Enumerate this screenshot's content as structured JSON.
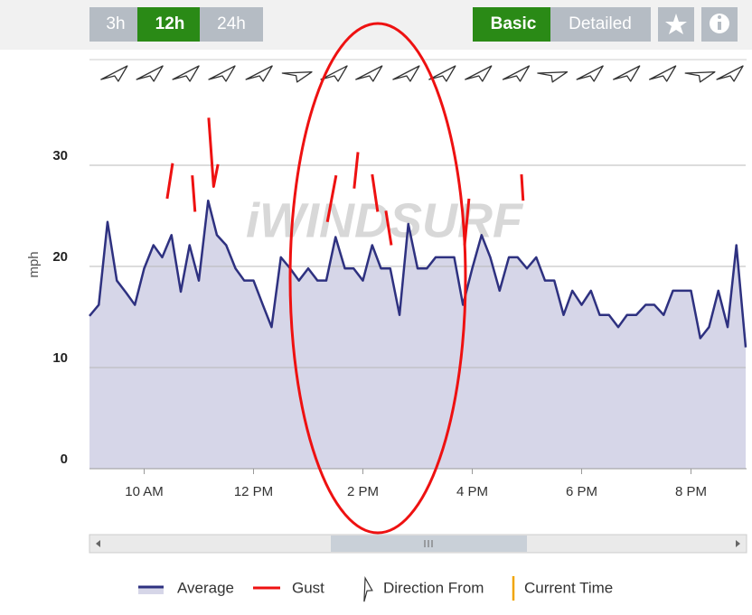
{
  "ui": {
    "ranges": [
      "3h",
      "12h",
      "24h"
    ],
    "views": [
      "Basic",
      "Detailed"
    ],
    "watermark": "iWINDSURF"
  },
  "chart_data": {
    "type": "line",
    "y_label": "mph",
    "xlim": [
      9,
      21
    ],
    "xticks": [
      {
        "value": 10,
        "label": "10 AM"
      },
      {
        "value": 12,
        "label": "12 PM"
      },
      {
        "value": 14,
        "label": "2 PM"
      },
      {
        "value": 16,
        "label": "4 PM"
      },
      {
        "value": 18,
        "label": "6 PM"
      },
      {
        "value": 20,
        "label": "8 PM"
      }
    ],
    "ylim": [
      0,
      35
    ],
    "yticks": [
      0,
      10,
      20,
      30
    ],
    "grid": true,
    "series": [
      {
        "name": "Average",
        "color": "#2e3180",
        "area_color": "#d6d6e8",
        "x": [
          9,
          9.17,
          9.33,
          9.5,
          9.67,
          9.83,
          10,
          10.17,
          10.33,
          10.5,
          10.67,
          10.83,
          11,
          11.17,
          11.33,
          11.5,
          11.67,
          11.83,
          12,
          12.17,
          12.33,
          12.5,
          12.67,
          12.83,
          13,
          13.17,
          13.33,
          13.5,
          13.67,
          13.83,
          14,
          14.17,
          14.33,
          14.5,
          14.67,
          14.83,
          15,
          15.17,
          15.33,
          15.5,
          15.67,
          15.83,
          16,
          16.17,
          16.33,
          16.5,
          16.67,
          16.83,
          17,
          17.17,
          17.33,
          17.5,
          17.67,
          17.83,
          18,
          18.17,
          18.33,
          18.5,
          18.67,
          18.83,
          19,
          19.17,
          19.33,
          19.5,
          19.67,
          19.83,
          20,
          20.17,
          20.33,
          20.5,
          20.67,
          20.83,
          21
        ],
        "values": [
          15.1,
          16.2,
          24.4,
          18.6,
          17.4,
          16.2,
          19.8,
          22.1,
          20.9,
          23.1,
          17.5,
          22.1,
          18.6,
          26.5,
          23.1,
          22.1,
          19.8,
          18.6,
          18.6,
          16.2,
          14.0,
          20.9,
          19.8,
          18.6,
          19.8,
          18.6,
          18.6,
          22.9,
          19.8,
          19.8,
          18.6,
          22.1,
          19.8,
          19.8,
          15.2,
          24.2,
          19.8,
          19.8,
          20.9,
          20.9,
          20.9,
          16.2,
          19.8,
          23.1,
          20.9,
          17.6,
          20.9,
          20.9,
          19.8,
          20.9,
          18.6,
          18.6,
          15.2,
          17.6,
          16.2,
          17.6,
          15.2,
          15.2,
          14.0,
          15.2,
          15.2,
          16.2,
          16.2,
          15.2,
          17.6,
          17.6,
          17.6,
          12.9,
          14.0,
          17.6,
          14.0,
          22.1,
          12.0
        ]
      },
      {
        "name": "Gust",
        "color": "#ee1111",
        "x": [
          10.42,
          10.52,
          null,
          10.88,
          10.93,
          null,
          11.18,
          11.27,
          11.35,
          null,
          13.35,
          13.51,
          null,
          13.84,
          13.91,
          null,
          14.17,
          14.27,
          null,
          14.42,
          14.52,
          null,
          15.86,
          15.94,
          null,
          16.9,
          16.93
        ],
        "values": [
          26.7,
          30.2,
          null,
          29.0,
          25.4,
          null,
          34.7,
          27.9,
          30.1,
          null,
          24.4,
          29.0,
          null,
          27.7,
          31.3,
          null,
          29.1,
          25.4,
          null,
          25.5,
          22.1,
          null,
          22.1,
          26.7,
          null,
          29.1,
          26.5
        ]
      }
    ],
    "directions": {
      "name": "Direction From",
      "x": [
        9.46,
        10.11,
        10.77,
        11.43,
        12.11,
        12.8,
        13.48,
        14.12,
        14.8,
        15.46,
        16.12,
        16.81,
        17.47,
        18.16,
        18.83,
        19.49,
        20.17,
        20.72
      ],
      "values": [
        225,
        225,
        225,
        225,
        225,
        250,
        225,
        225,
        225,
        225,
        225,
        225,
        250,
        225,
        225,
        225,
        250,
        225
      ]
    },
    "current_time_label": "Current Time"
  }
}
